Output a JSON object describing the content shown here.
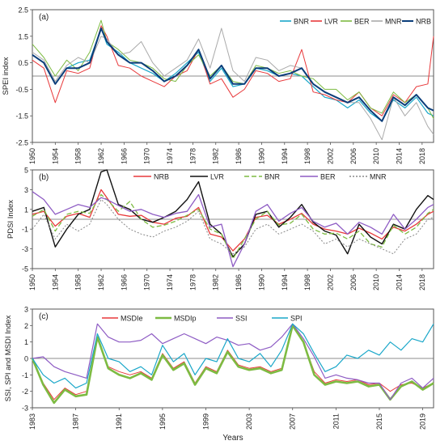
{
  "chart_data": [
    {
      "type": "line",
      "panel": "(a)",
      "ylabel": "SPEI index",
      "xlim": [
        1950,
        2020
      ],
      "ylim": [
        -2.5,
        2.5
      ],
      "xticks": [
        "1950",
        "1954",
        "1958",
        "1962",
        "1966",
        "1970",
        "1974",
        "1978",
        "1982",
        "1986",
        "1990",
        "1994",
        "1998",
        "2002",
        "2006",
        "2010",
        "2014",
        "2018"
      ],
      "yticks": [
        "2.5",
        "1.5",
        "0.5",
        "-0.5",
        "-1.5",
        "-2.5"
      ],
      "legend_position": "top-right",
      "x": [
        1950,
        1952,
        1954,
        1956,
        1958,
        1960,
        1962,
        1963,
        1965,
        1967,
        1969,
        1971,
        1973,
        1975,
        1977,
        1979,
        1981,
        1983,
        1985,
        1987,
        1989,
        1991,
        1993,
        1995,
        1997,
        1999,
        2001,
        2003,
        2005,
        2007,
        2009,
        2011,
        2013,
        2015,
        2017,
        2019,
        2020
      ],
      "series": [
        {
          "name": "BNR",
          "color": "#1aa7c9",
          "width": 1.2,
          "values": [
            0.8,
            0.5,
            -0.3,
            0.3,
            0.5,
            0.6,
            1.8,
            1.2,
            0.9,
            0.5,
            0.3,
            0.1,
            -0.2,
            0.1,
            0.5,
            0.9,
            -0.2,
            0.3,
            -0.4,
            -0.3,
            0.3,
            0.2,
            0.0,
            0.1,
            0.0,
            -0.4,
            -0.8,
            -0.9,
            -1.2,
            -0.9,
            -1.4,
            -1.7,
            -0.9,
            -1.2,
            -0.8,
            -1.4,
            -1.5
          ]
        },
        {
          "name": "LVR",
          "color": "#e8393b",
          "width": 1.0,
          "values": [
            0.6,
            0.3,
            -1.0,
            0.2,
            0.1,
            0.3,
            1.9,
            1.5,
            0.4,
            0.3,
            0.0,
            -0.2,
            -0.4,
            0.0,
            0.2,
            1.0,
            -0.3,
            -0.1,
            -0.8,
            -0.5,
            0.2,
            0.1,
            -0.2,
            -0.1,
            1.0,
            -0.6,
            -0.7,
            -0.9,
            -1.0,
            -0.6,
            -1.2,
            -1.5,
            -0.7,
            -1.0,
            -0.4,
            -0.3,
            1.5
          ]
        },
        {
          "name": "BER",
          "color": "#7dbb42",
          "width": 1.0,
          "values": [
            1.2,
            0.7,
            0.0,
            0.6,
            0.2,
            0.9,
            2.1,
            1.3,
            1.0,
            0.6,
            0.5,
            0.3,
            -0.1,
            -0.2,
            0.4,
            0.8,
            0.0,
            0.4,
            -0.2,
            -0.3,
            0.4,
            0.3,
            0.1,
            0.2,
            0.0,
            -0.1,
            -0.5,
            -0.5,
            -0.9,
            -0.6,
            -1.2,
            -1.4,
            -0.6,
            -1.0,
            -0.7,
            -1.2,
            -1.6
          ]
        },
        {
          "name": "MNR",
          "color": "#aaaaaa",
          "width": 1.0,
          "values": [
            0.9,
            0.6,
            -0.2,
            0.4,
            0.7,
            0.5,
            1.5,
            1.4,
            0.8,
            0.9,
            1.3,
            0.5,
            0.0,
            0.3,
            0.6,
            1.4,
            0.3,
            1.8,
            0.2,
            -0.2,
            0.7,
            0.6,
            0.2,
            0.4,
            0.3,
            -0.3,
            -0.6,
            -0.8,
            -1.0,
            -1.0,
            -1.6,
            -2.4,
            -0.8,
            -1.5,
            -1.0,
            -1.9,
            -2.2
          ]
        },
        {
          "name": "NRB",
          "color": "#0a3d7a",
          "width": 2.0,
          "values": [
            0.8,
            0.5,
            -0.3,
            0.3,
            0.3,
            0.5,
            1.8,
            1.3,
            0.8,
            0.5,
            0.5,
            0.2,
            -0.2,
            0.0,
            0.4,
            1.0,
            -0.1,
            0.4,
            -0.3,
            -0.3,
            0.3,
            0.3,
            0.0,
            0.1,
            0.3,
            -0.3,
            -0.6,
            -0.8,
            -1.0,
            -0.8,
            -1.3,
            -1.7,
            -0.8,
            -1.1,
            -0.7,
            -1.2,
            -1.3
          ]
        }
      ]
    },
    {
      "type": "line",
      "panel": "(b)",
      "ylabel": "PDSI Index",
      "xlim": [
        1950,
        2020
      ],
      "ylim": [
        -5,
        5
      ],
      "xticks": [
        "1950",
        "1954",
        "1958",
        "1962",
        "1966",
        "1970",
        "1974",
        "1978",
        "1982",
        "1986",
        "1990",
        "1994",
        "1998",
        "2002",
        "2006",
        "2010",
        "2014",
        "2018"
      ],
      "yticks": [
        "5",
        "3",
        "1",
        "-1",
        "-3",
        "-5"
      ],
      "legend_position": "top",
      "x": [
        1950,
        1952,
        1954,
        1956,
        1958,
        1960,
        1962,
        1963,
        1965,
        1967,
        1969,
        1971,
        1973,
        1975,
        1977,
        1979,
        1981,
        1983,
        1985,
        1987,
        1989,
        1991,
        1993,
        1995,
        1997,
        1999,
        2001,
        2003,
        2005,
        2007,
        2009,
        2011,
        2013,
        2015,
        2017,
        2019,
        2020
      ],
      "series": [
        {
          "name": "NRB",
          "color": "#e8393b",
          "width": 1.3,
          "dash": "",
          "values": [
            0.5,
            0.8,
            -0.7,
            0.3,
            0.6,
            0.2,
            3.0,
            2.2,
            0.5,
            0.3,
            0.4,
            -0.3,
            -0.5,
            0.1,
            0.3,
            1.2,
            -1.5,
            -1.8,
            -3.2,
            -2.0,
            0.2,
            0.4,
            -0.5,
            0.0,
            0.6,
            -0.5,
            -1.0,
            -1.2,
            -1.5,
            -0.9,
            -1.4,
            -2.0,
            -0.8,
            -1.2,
            -0.5,
            0.5,
            0.8
          ]
        },
        {
          "name": "LVR",
          "color": "#111111",
          "width": 1.4,
          "dash": "",
          "values": [
            0.8,
            1.2,
            -2.8,
            -1.0,
            0.5,
            1.0,
            4.8,
            5.0,
            1.5,
            1.0,
            0.0,
            -0.3,
            0.2,
            0.8,
            2.0,
            3.8,
            -0.5,
            -1.5,
            -3.8,
            -2.5,
            0.5,
            0.8,
            -0.8,
            0.2,
            1.5,
            -0.3,
            -1.2,
            -1.6,
            -3.5,
            -0.5,
            -1.8,
            -2.5,
            -0.5,
            -1.0,
            1.0,
            2.4,
            2.0
          ]
        },
        {
          "name": "BNR",
          "color": "#7dbb42",
          "width": 1.3,
          "dash": "6,3",
          "values": [
            0.3,
            1.0,
            -1.2,
            0.5,
            0.8,
            0.6,
            2.5,
            2.0,
            0.8,
            1.8,
            0.0,
            -0.8,
            -0.6,
            -0.2,
            0.4,
            1.0,
            -1.0,
            -1.5,
            -4.0,
            -2.0,
            0.0,
            0.8,
            -0.6,
            -0.4,
            0.5,
            -1.0,
            -1.5,
            -1.4,
            -2.0,
            -1.2,
            -2.5,
            -2.8,
            -0.6,
            -1.5,
            -0.8,
            0.6,
            1.0
          ]
        },
        {
          "name": "BER",
          "color": "#8e5cc4",
          "width": 1.3,
          "dash": "",
          "values": [
            2.8,
            2.0,
            0.5,
            1.0,
            1.5,
            1.2,
            2.2,
            2.0,
            1.4,
            0.8,
            1.0,
            0.5,
            0.2,
            0.6,
            0.8,
            2.5,
            -0.8,
            -0.5,
            -4.8,
            -2.5,
            0.8,
            1.5,
            -0.2,
            0.6,
            1.2,
            -0.2,
            -0.8,
            -0.4,
            -1.5,
            -0.3,
            -0.8,
            -1.5,
            0.5,
            -1.0,
            0.0,
            1.2,
            1.5
          ]
        },
        {
          "name": "MNR",
          "color": "#888888",
          "width": 1.0,
          "dash": "2,2",
          "values": [
            -1.0,
            0.5,
            -2.0,
            -0.5,
            -1.2,
            -0.5,
            2.0,
            1.5,
            0.0,
            -1.0,
            -1.5,
            -1.8,
            -1.2,
            -0.8,
            -0.2,
            0.8,
            -2.0,
            -2.5,
            -3.5,
            -2.8,
            -1.0,
            -0.5,
            -1.5,
            -1.0,
            -0.5,
            -1.2,
            -2.5,
            -2.0,
            -2.8,
            -2.0,
            -2.5,
            -3.0,
            -3.5,
            -2.0,
            -1.5,
            0.0,
            0.2
          ]
        }
      ]
    },
    {
      "type": "line",
      "panel": "(c)",
      "ylabel": "SSI, SPI and MSDI Index",
      "xlabel": "Years",
      "xlim": [
        1983,
        2020
      ],
      "ylim": [
        -3,
        3
      ],
      "xticks": [
        "1983",
        "1987",
        "1991",
        "1995",
        "1999",
        "2003",
        "2007",
        "2011",
        "2015",
        "2019"
      ],
      "yticks": [
        "3",
        "2",
        "1",
        "0",
        "-1",
        "-2",
        "-3"
      ],
      "legend_position": "top",
      "x": [
        1983,
        1984,
        1985,
        1986,
        1987,
        1988,
        1989,
        1990,
        1991,
        1992,
        1993,
        1994,
        1995,
        1996,
        1997,
        1998,
        1999,
        2000,
        2001,
        2002,
        2003,
        2004,
        2005,
        2006,
        2007,
        2008,
        2009,
        2010,
        2011,
        2012,
        2013,
        2014,
        2015,
        2016,
        2017,
        2018,
        2019,
        2020
      ],
      "series": [
        {
          "name": "MSDIe",
          "color": "#e8393b",
          "width": 1.0,
          "values": [
            0.0,
            -1.5,
            -2.5,
            -1.8,
            -2.2,
            -2.0,
            1.2,
            -0.5,
            -0.8,
            -1.0,
            -0.8,
            -1.2,
            0.3,
            -0.6,
            -0.2,
            -1.5,
            -0.5,
            -0.8,
            0.5,
            -0.4,
            -0.6,
            -0.5,
            -0.8,
            -0.6,
            2.0,
            1.0,
            -0.8,
            -1.5,
            -1.3,
            -1.4,
            -1.3,
            -1.6,
            -1.5,
            -2.0,
            -1.6,
            -1.5,
            -1.8,
            -1.5
          ]
        },
        {
          "name": "MSDIp",
          "color": "#7dbb42",
          "width": 2.6,
          "values": [
            0.0,
            -1.6,
            -2.7,
            -1.9,
            -2.3,
            -2.2,
            1.3,
            -0.6,
            -1.0,
            -1.2,
            -0.9,
            -1.3,
            0.2,
            -0.7,
            -0.3,
            -1.6,
            -0.6,
            -0.9,
            0.4,
            -0.5,
            -0.7,
            -0.6,
            -0.9,
            -0.7,
            2.0,
            1.0,
            -1.0,
            -1.6,
            -1.4,
            -1.5,
            -1.4,
            -1.7,
            -1.6,
            -2.5,
            -1.7,
            -1.4,
            -1.9,
            -1.5
          ]
        },
        {
          "name": "SSI",
          "color": "#8e5cc4",
          "width": 1.2,
          "values": [
            0.0,
            0.1,
            -0.5,
            -0.8,
            -1.0,
            -1.2,
            2.1,
            1.3,
            1.0,
            1.0,
            1.1,
            1.5,
            0.9,
            1.2,
            1.5,
            1.2,
            0.9,
            1.3,
            1.1,
            0.8,
            0.9,
            0.5,
            0.7,
            1.3,
            2.1,
            1.2,
            0.1,
            -1.2,
            -1.0,
            -1.2,
            -1.3,
            -1.5,
            -1.5,
            -2.5,
            -1.5,
            -1.2,
            -1.8,
            -1.2
          ]
        },
        {
          "name": "SPI",
          "color": "#1aa7c9",
          "width": 1.2,
          "values": [
            0.0,
            -1.0,
            -1.5,
            -1.2,
            -1.8,
            -1.5,
            1.5,
            0.0,
            -0.2,
            -0.8,
            -0.5,
            -1.0,
            0.8,
            -0.2,
            0.3,
            -1.0,
            0.0,
            -0.2,
            1.2,
            0.0,
            -0.2,
            0.3,
            -0.5,
            0.5,
            2.1,
            1.5,
            0.3,
            -0.8,
            -0.5,
            0.2,
            0.0,
            0.5,
            0.2,
            1.0,
            0.5,
            1.2,
            1.0,
            2.1
          ]
        }
      ]
    }
  ]
}
